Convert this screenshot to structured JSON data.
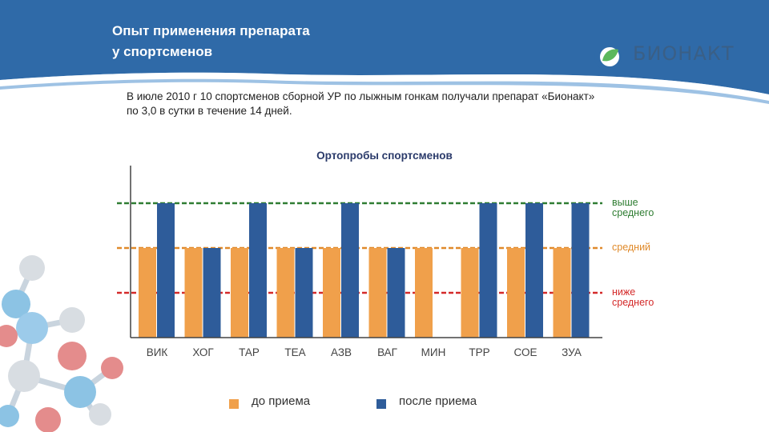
{
  "slide": {
    "title": "Опыт применения  препарата\nу спортсменов",
    "description": "В июле 2010 г 10 спортсменов сборной УР по лыжным гонкам получали препарат «Бионакт» по 3,0 в сутки в течение 14 дней.",
    "logo_text": "БИОНАКТ",
    "header_color": "#2f6aa8"
  },
  "chart_data": {
    "type": "bar",
    "title": "Ортопробы спортсменов",
    "categories": [
      "ВИК",
      "ХОГ",
      "ТАР",
      "ТЕА",
      "АЗВ",
      "ВАГ",
      "МИН",
      "ТРР",
      "СОЕ",
      "ЗУА"
    ],
    "levels": [
      "ниже среднего",
      "средний",
      "выше среднего"
    ],
    "series": [
      {
        "name": "до приема",
        "color": "#f0a04b",
        "values": [
          2,
          2,
          2,
          2,
          2,
          2,
          2,
          2,
          2,
          2
        ]
      },
      {
        "name": "после приема",
        "color": "#2e5c9a",
        "values": [
          3,
          2,
          3,
          2,
          3,
          2,
          null,
          3,
          3,
          3
        ]
      }
    ],
    "reference_lines": [
      {
        "label": "выше\nсреднего",
        "value": 3,
        "color": "#2f7d32"
      },
      {
        "label": "средний",
        "value": 2,
        "color": "#e08a2a"
      },
      {
        "label": "ниже\nсреднего",
        "value": 1,
        "color": "#d42a2a"
      }
    ]
  }
}
